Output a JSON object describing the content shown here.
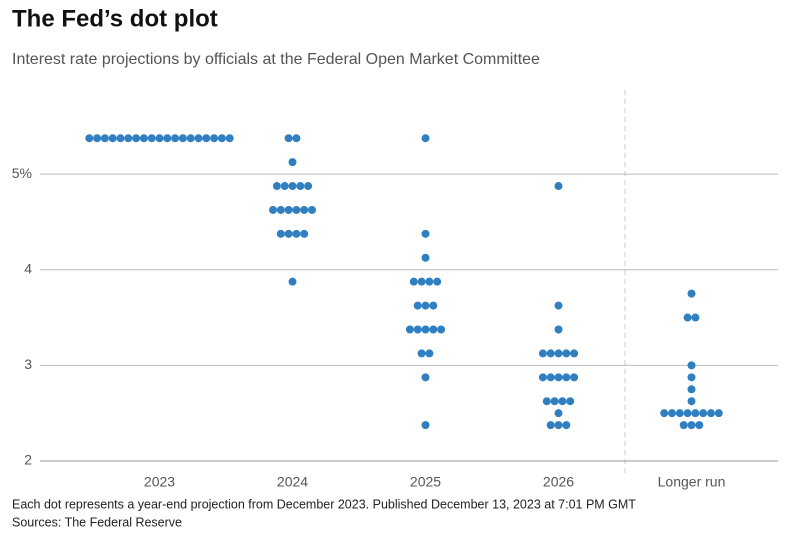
{
  "chart_data": {
    "type": "dot",
    "title": "The Fed’s dot plot",
    "subtitle": "Interest rate projections by officials at the Federal Open Market Committee",
    "note": "Each dot represents a year-end projection from December 2023. Published December 13, 2023 at 7:01 PM GMT",
    "source": "Sources: The Federal Reserve",
    "categories": [
      "2023",
      "2024",
      "2025",
      "2026",
      "Longer run"
    ],
    "color": "#2f7fc1",
    "values": [
      [
        5.375,
        5.375,
        5.375,
        5.375,
        5.375,
        5.375,
        5.375,
        5.375,
        5.375,
        5.375,
        5.375,
        5.375,
        5.375,
        5.375,
        5.375,
        5.375,
        5.375,
        5.375,
        5.375
      ],
      [
        5.375,
        5.375,
        5.125,
        4.875,
        4.875,
        4.875,
        4.875,
        4.875,
        4.625,
        4.625,
        4.625,
        4.625,
        4.625,
        4.625,
        4.375,
        4.375,
        4.375,
        4.375,
        3.875
      ],
      [
        5.375,
        4.375,
        4.125,
        3.875,
        3.875,
        3.875,
        3.875,
        3.625,
        3.625,
        3.625,
        3.375,
        3.375,
        3.375,
        3.375,
        3.375,
        3.125,
        3.125,
        2.875,
        2.375
      ],
      [
        4.875,
        3.625,
        3.375,
        3.125,
        3.125,
        3.125,
        3.125,
        3.125,
        2.875,
        2.875,
        2.875,
        2.875,
        2.875,
        2.625,
        2.625,
        2.625,
        2.625,
        2.5,
        2.375,
        2.375,
        2.375
      ],
      [
        3.75,
        3.5,
        3.5,
        3.0,
        2.875,
        2.75,
        2.625,
        2.5,
        2.5,
        2.5,
        2.5,
        2.5,
        2.5,
        2.5,
        2.5,
        2.375,
        2.375,
        2.375
      ]
    ],
    "ylim": [
      2,
      5.9
    ],
    "yticks": [
      2,
      3,
      4,
      {
        "value": 5,
        "label": "5%"
      }
    ],
    "grid": true
  }
}
